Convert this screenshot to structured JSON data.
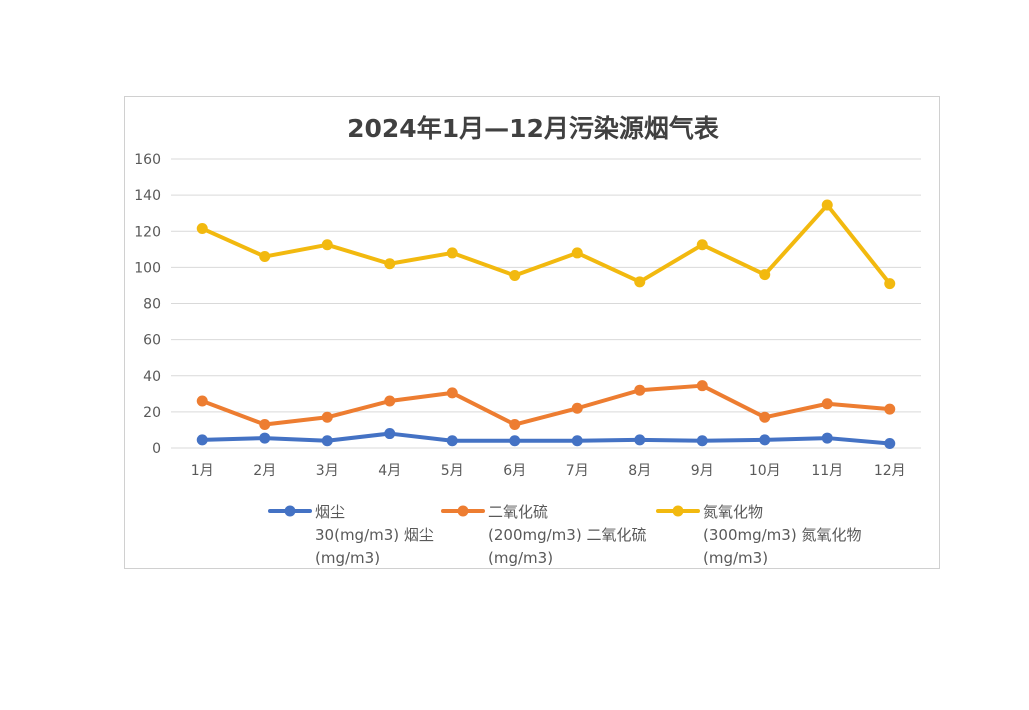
{
  "chart_data": {
    "type": "line",
    "title": "2024年1月—12月污染源烟气表",
    "categories": [
      "1月",
      "2月",
      "3月",
      "4月",
      "5月",
      "6月",
      "7月",
      "8月",
      "9月",
      "10月",
      "11月",
      "12月"
    ],
    "ylim": [
      0,
      160
    ],
    "yticks": [
      "0",
      "20",
      "40",
      "60",
      "80",
      "100",
      "120",
      "140",
      "160"
    ],
    "grid": "horizontal",
    "legend_position": "bottom",
    "series": [
      {
        "name": "烟尘",
        "legend_lines": [
          "烟尘",
          "30(mg/m3) 烟尘",
          "(mg/m3)"
        ],
        "color": "#4472C4",
        "values": [
          4.5,
          5.5,
          4.0,
          8.0,
          4.0,
          4.0,
          4.0,
          4.5,
          4.0,
          4.5,
          5.5,
          2.5
        ]
      },
      {
        "name": "二氧化硫",
        "legend_lines": [
          "二氧化硫",
          "(200mg/m3) 二氧化硫",
          "(mg/m3)"
        ],
        "color": "#ED7D31",
        "values": [
          26,
          13,
          17,
          26,
          30.5,
          13,
          22,
          32,
          34.5,
          17,
          24.5,
          21.5
        ]
      },
      {
        "name": "氮氧化物",
        "legend_lines": [
          "氮氧化物",
          "(300mg/m3) 氮氧化物",
          "(mg/m3)"
        ],
        "color": "#F2B90F",
        "values": [
          121.5,
          106,
          112.5,
          102,
          108,
          95.5,
          108,
          92,
          112.5,
          96,
          134.5,
          91
        ]
      }
    ]
  }
}
